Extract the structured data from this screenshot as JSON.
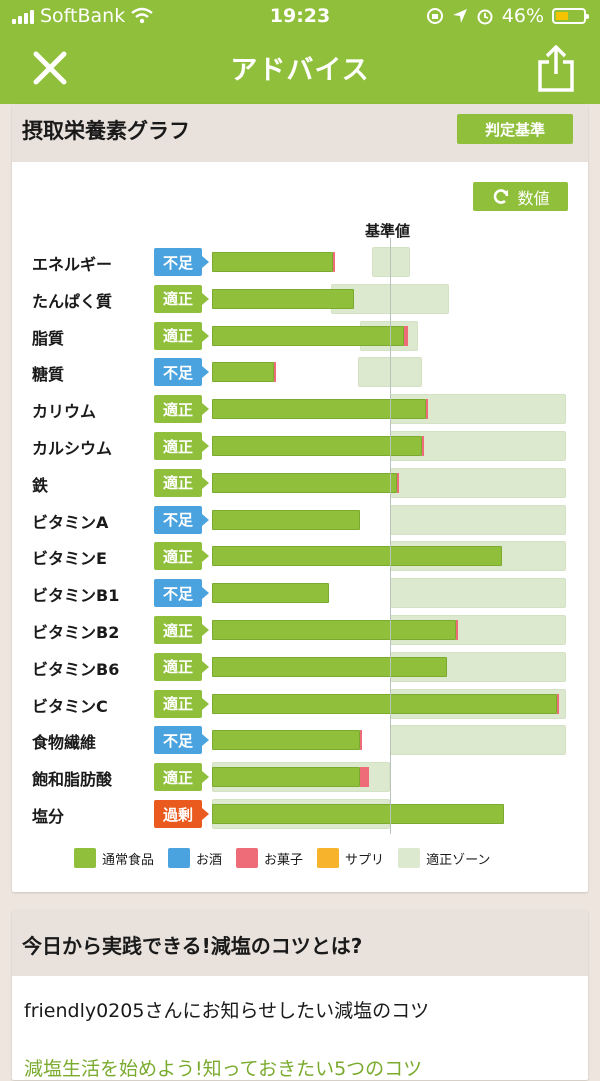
{
  "status_bar": {
    "carrier": "SoftBank",
    "time": "19:23",
    "battery": "46%",
    "battery_level": 0.46
  },
  "nav": {
    "title": "アドバイス"
  },
  "nutrient_card": {
    "title": "摂取栄養素グラフ",
    "judge_button": "判定基準",
    "values_button": "数値",
    "reference_label": "基準値"
  },
  "badge_colors": {
    "不足": "#4aa3de",
    "適正": "#8fbf3b",
    "過剰": "#ea5a1e"
  },
  "rows": [
    {
      "name": "エネルギー",
      "status": "不足"
    },
    {
      "name": "たんぱく質",
      "status": "適正"
    },
    {
      "name": "脂質",
      "status": "適正"
    },
    {
      "name": "糖質",
      "status": "不足"
    },
    {
      "name": "カリウム",
      "status": "適正"
    },
    {
      "name": "カルシウム",
      "status": "適正"
    },
    {
      "name": "鉄",
      "status": "適正"
    },
    {
      "name": "ビタミンA",
      "status": "不足"
    },
    {
      "name": "ビタミンE",
      "status": "適正"
    },
    {
      "name": "ビタミンB1",
      "status": "不足"
    },
    {
      "name": "ビタミンB2",
      "status": "適正"
    },
    {
      "name": "ビタミンB6",
      "status": "適正"
    },
    {
      "name": "ビタミンC",
      "status": "適正"
    },
    {
      "name": "食物繊維",
      "status": "不足"
    },
    {
      "name": "飽和脂肪酸",
      "status": "適正"
    },
    {
      "name": "塩分",
      "status": "過剰"
    }
  ],
  "chart_data": {
    "type": "bar",
    "orientation": "horizontal",
    "title": "摂取栄養素グラフ",
    "reference_label": "基準値",
    "value_unit": "ratio to reference (1.0 = 基準値)",
    "categories": [
      "エネルギー",
      "たんぱく質",
      "脂質",
      "糖質",
      "カリウム",
      "カルシウム",
      "鉄",
      "ビタミンA",
      "ビタミンE",
      "ビタミンB1",
      "ビタミンB2",
      "ビタミンB6",
      "ビタミンC",
      "食物繊維",
      "飽和脂肪酸",
      "塩分"
    ],
    "series": [
      {
        "name": "通常食品",
        "color": "#8fbf3b",
        "values": [
          0.68,
          0.8,
          1.08,
          0.35,
          1.2,
          1.18,
          1.04,
          0.83,
          1.63,
          0.66,
          1.37,
          1.32,
          1.94,
          0.83,
          0.83,
          1.64
        ]
      },
      {
        "name": "お菓子",
        "color": "#ee6c78",
        "values": [
          0.01,
          0,
          0.02,
          0.01,
          0.01,
          0.01,
          0.01,
          0,
          0,
          0,
          0.01,
          0,
          0.01,
          0.01,
          0.05,
          0
        ]
      }
    ],
    "appropriate_zone": [
      [
        0.9,
        1.11
      ],
      [
        0.67,
        1.33
      ],
      [
        0.83,
        1.16
      ],
      [
        0.82,
        1.18
      ],
      [
        1.0,
        1.99
      ],
      [
        1.0,
        1.99
      ],
      [
        1.0,
        1.99
      ],
      [
        1.0,
        1.99
      ],
      [
        1.0,
        1.99
      ],
      [
        1.0,
        1.99
      ],
      [
        1.0,
        1.99
      ],
      [
        1.0,
        1.99
      ],
      [
        1.0,
        1.99
      ],
      [
        1.0,
        1.99
      ],
      [
        0,
        1.0
      ],
      [
        0,
        1.0
      ]
    ],
    "legend": [
      {
        "name": "通常食品",
        "color": "#8fbf3b"
      },
      {
        "name": "お酒",
        "color": "#4aa3de"
      },
      {
        "name": "お菓子",
        "color": "#ee6c78"
      },
      {
        "name": "サプリ",
        "color": "#f7b32b"
      },
      {
        "name": "適正ゾーン",
        "color": "#dde9cf"
      }
    ]
  },
  "advice_card": {
    "title": "今日から実践できる!減塩のコツとは?",
    "subtitle": "friendly0205さんにお知らせしたい減塩のコツ",
    "link": "減塩生活を始めよう!知っておきたい5つのコツ"
  }
}
